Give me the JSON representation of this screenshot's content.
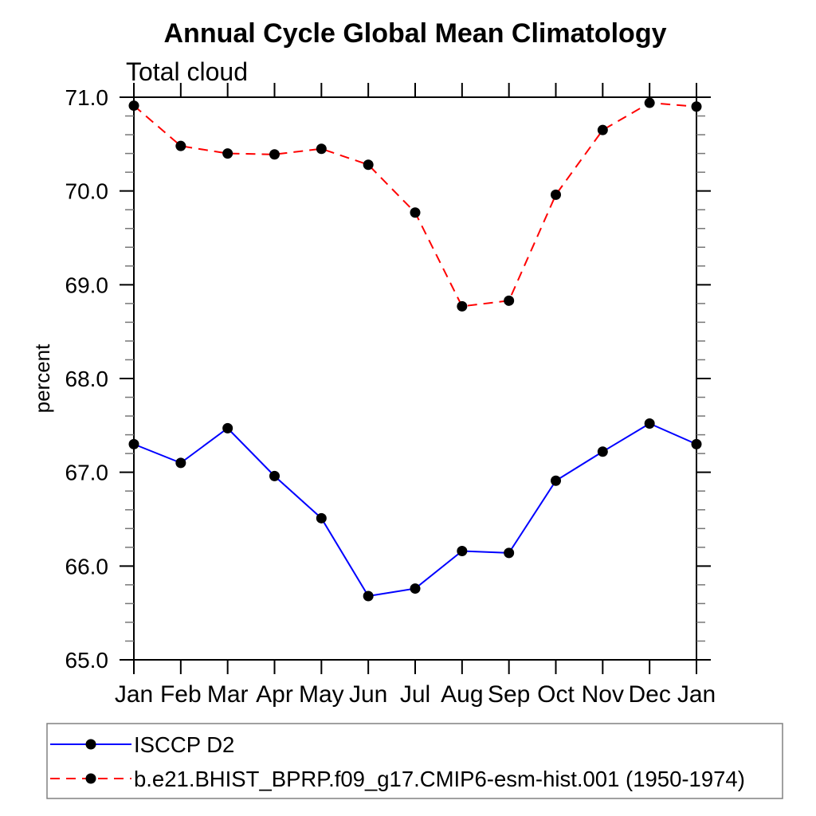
{
  "chart_data": {
    "type": "line",
    "title": "Annual Cycle Global Mean Climatology",
    "subtitle": "Total cloud",
    "ylabel": "percent",
    "xlabel": "",
    "x_categories": [
      "Jan",
      "Feb",
      "Mar",
      "Apr",
      "May",
      "Jun",
      "Jul",
      "Aug",
      "Sep",
      "Oct",
      "Nov",
      "Dec",
      "Jan"
    ],
    "ylim": [
      65.0,
      71.0
    ],
    "yticks_major": {
      "values": [
        65.0,
        66.0,
        67.0,
        68.0,
        69.0,
        70.0,
        71.0
      ],
      "labels": [
        "65.0",
        "66.0",
        "67.0",
        "68.0",
        "69.0",
        "70.0",
        "71.0"
      ]
    },
    "ytick_minor_step": 0.2,
    "grid": false,
    "tick_style": "outward-all-four-sides",
    "legend": {
      "position": "bottom-left",
      "boxed": true,
      "border_color": "#808080"
    },
    "series": [
      {
        "name": "ISCCP D2",
        "line_color": "#0000ff",
        "line_style": "solid",
        "marker": "filled-circle",
        "marker_color": "#000000",
        "values": [
          67.3,
          67.1,
          67.47,
          66.96,
          66.51,
          65.68,
          65.76,
          66.16,
          66.14,
          66.91,
          67.22,
          67.52,
          67.3
        ]
      },
      {
        "name": "b.e21.BHIST_BPRP.f09_g17.CMIP6-esm-hist.001 (1950-1974)",
        "line_color": "#ff0000",
        "line_style": "dashed",
        "marker": "filled-circle",
        "marker_color": "#000000",
        "values": [
          70.91,
          70.48,
          70.4,
          70.39,
          70.45,
          70.28,
          69.77,
          68.77,
          68.83,
          69.96,
          70.65,
          70.94,
          70.9
        ]
      }
    ]
  }
}
